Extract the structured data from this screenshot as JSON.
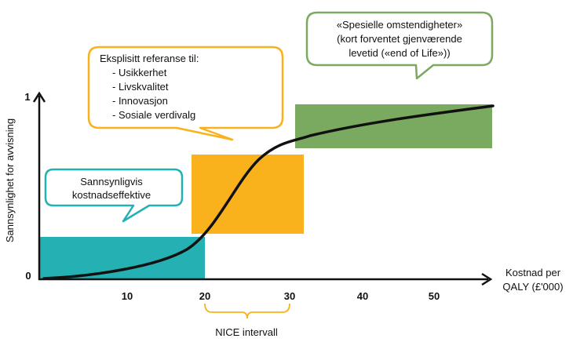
{
  "axes": {
    "y_label": "Sannsynlighet for avvisning",
    "y_tick_top": "1",
    "y_tick_bottom": "0",
    "x_label_line1": "Kostnad per",
    "x_label_line2": "QALY (£'000)",
    "x_ticks": [
      "10",
      "20",
      "30",
      "40",
      "50"
    ]
  },
  "regions": {
    "cost_effective": {
      "color": "#25b0b3"
    },
    "nice_range": {
      "color": "#f9b21b"
    },
    "special": {
      "color": "#7aaa5f"
    }
  },
  "bubbles": {
    "cost_effective": {
      "lines": [
        "Sannsynligvis",
        "kostnadseffektive"
      ],
      "color": "#25b0b3"
    },
    "explicit": {
      "title": "Eksplisitt referanse til:",
      "items": [
        "- Usikkerhet",
        "- Livskvalitet",
        "- Innovasjon",
        "- Sosiale verdivalg"
      ],
      "color": "#f9b21b"
    },
    "special": {
      "lines": [
        "«Spesielle omstendigheter»",
        "(kort forventet gjenværende",
        "levetid («end of Life»))"
      ],
      "color": "#7aaa5f"
    }
  },
  "nice": {
    "label": "NICE intervall",
    "color": "#f9b21b"
  },
  "curve": {
    "color": "#111111"
  }
}
